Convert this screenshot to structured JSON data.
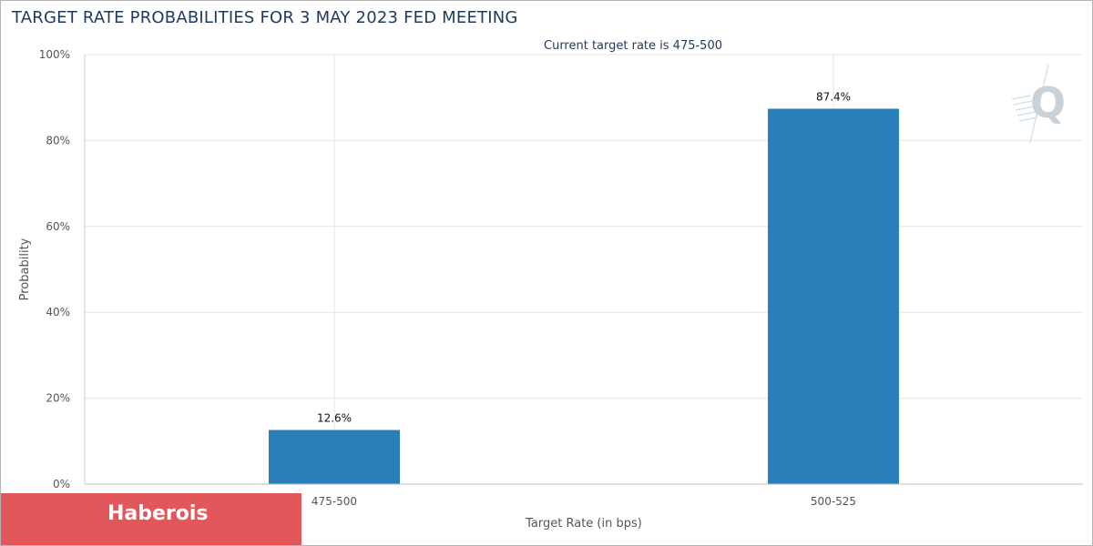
{
  "title": "TARGET RATE PROBABILITIES FOR 3 MAY 2023 FED MEETING",
  "brand": {
    "label": "Haberois",
    "color": "#e2575a"
  },
  "watermark_icon": "q-logo-icon",
  "colors": {
    "bar": "#2980b9",
    "grid": "#e6e6e6",
    "axis_text": "#555555",
    "title": "#1f3a5f"
  },
  "chart_data": {
    "type": "bar",
    "title": "TARGET RATE PROBABILITIES FOR 3 MAY 2023 FED MEETING",
    "subtitle": "Current target rate is 475-500",
    "xlabel": "Target Rate (in bps)",
    "ylabel": "Probability",
    "categories": [
      "475-500",
      "500-525"
    ],
    "values": [
      12.6,
      87.4
    ],
    "data_labels": [
      "12.6%",
      "87.4%"
    ],
    "ylim": [
      0,
      100
    ],
    "yticks": [
      0,
      20,
      40,
      60,
      80,
      100
    ],
    "ytick_labels": [
      "0%",
      "20%",
      "40%",
      "60%",
      "80%",
      "100%"
    ],
    "grid": true,
    "legend": "none"
  }
}
